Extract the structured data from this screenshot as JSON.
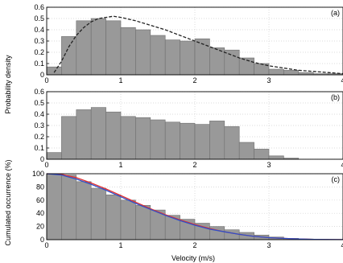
{
  "figure": {
    "ylabel_top": "Probability density",
    "ylabel_bottom": "Cumulated occurrence (%)",
    "xlabel": "Velocity (m/s)"
  },
  "chart_data": [
    {
      "type": "bar",
      "panel": "(a)",
      "xlim": [
        0,
        4
      ],
      "ylim": [
        0,
        0.6
      ],
      "xticks": [
        "0",
        "1",
        "2",
        "3",
        "4"
      ],
      "yticks": [
        "0",
        "0.1",
        "0.2",
        "0.3",
        "0.4",
        "0.5",
        "0.6"
      ],
      "bin_width": 0.2,
      "bin_starts": [
        0.0,
        0.2,
        0.4,
        0.6,
        0.8,
        1.0,
        1.2,
        1.4,
        1.6,
        1.8,
        2.0,
        2.2,
        2.4,
        2.6,
        2.8,
        3.0,
        3.2,
        3.4,
        3.6,
        3.8
      ],
      "values": [
        0.07,
        0.34,
        0.48,
        0.5,
        0.48,
        0.42,
        0.4,
        0.35,
        0.31,
        0.3,
        0.32,
        0.24,
        0.22,
        0.15,
        0.1,
        0.05,
        0.04,
        0.02,
        0.01,
        0.01
      ],
      "fit_curve": {
        "style": "dashed",
        "x": [
          0.1,
          0.2,
          0.3,
          0.4,
          0.5,
          0.6,
          0.7,
          0.8,
          0.9,
          1.0,
          1.2,
          1.4,
          1.6,
          1.8,
          2.0,
          2.2,
          2.4,
          2.6,
          2.8,
          3.0,
          3.2,
          3.4,
          3.6,
          3.8,
          4.0
        ],
        "y": [
          0.02,
          0.12,
          0.25,
          0.35,
          0.42,
          0.47,
          0.5,
          0.51,
          0.52,
          0.51,
          0.48,
          0.44,
          0.4,
          0.35,
          0.3,
          0.25,
          0.2,
          0.15,
          0.11,
          0.08,
          0.06,
          0.04,
          0.03,
          0.02,
          0.01
        ]
      }
    },
    {
      "type": "bar",
      "panel": "(b)",
      "xlim": [
        0,
        4
      ],
      "ylim": [
        0,
        0.6
      ],
      "xticks": [
        "0",
        "1",
        "2",
        "3",
        "4"
      ],
      "yticks": [
        "0",
        "0.1",
        "0.2",
        "0.3",
        "0.4",
        "0.5",
        "0.6"
      ],
      "bin_width": 0.2,
      "bin_starts": [
        0.0,
        0.2,
        0.4,
        0.6,
        0.8,
        1.0,
        1.2,
        1.4,
        1.6,
        1.8,
        2.0,
        2.2,
        2.4,
        2.6,
        2.8,
        3.0,
        3.2,
        3.4,
        3.6,
        3.8
      ],
      "values": [
        0.06,
        0.38,
        0.44,
        0.46,
        0.42,
        0.38,
        0.37,
        0.35,
        0.33,
        0.32,
        0.31,
        0.34,
        0.29,
        0.15,
        0.09,
        0.03,
        0.01,
        0.0,
        0.0,
        0.0
      ]
    },
    {
      "type": "bar",
      "panel": "(c)",
      "xlim": [
        0,
        4
      ],
      "ylim": [
        0,
        100
      ],
      "xticks": [
        "0",
        "1",
        "2",
        "3",
        "4"
      ],
      "yticks": [
        "0",
        "20",
        "40",
        "60",
        "80",
        "100"
      ],
      "bin_width": 0.2,
      "bin_starts": [
        0.0,
        0.2,
        0.4,
        0.6,
        0.8,
        1.0,
        1.2,
        1.4,
        1.6,
        1.8,
        2.0,
        2.2,
        2.4,
        2.6,
        2.8,
        3.0,
        3.2,
        3.4,
        3.6,
        3.8
      ],
      "values": [
        100,
        98,
        88,
        78,
        68,
        60,
        52,
        45,
        37,
        31,
        25,
        20,
        15,
        11,
        7,
        4,
        2,
        1,
        0.5,
        0.2
      ],
      "series": [
        {
          "color": "#e03030",
          "x": [
            0,
            0.2,
            0.4,
            0.6,
            0.8,
            1.0,
            1.2,
            1.4,
            1.6,
            1.8,
            2.0,
            2.2,
            2.4,
            2.6,
            2.8,
            3.0,
            3.2,
            3.4,
            3.6,
            3.8,
            4.0
          ],
          "y": [
            100,
            99,
            94,
            86,
            77,
            67,
            57,
            47,
            38,
            30,
            23,
            17,
            12,
            8,
            5,
            3,
            2,
            1,
            0.5,
            0.2,
            0.1
          ]
        },
        {
          "color": "#3050c8",
          "x": [
            0,
            0.2,
            0.4,
            0.6,
            0.8,
            1.0,
            1.2,
            1.4,
            1.6,
            1.8,
            2.0,
            2.2,
            2.4,
            2.6,
            2.8,
            3.0,
            3.2,
            3.4,
            3.6,
            3.8,
            4.0
          ],
          "y": [
            100,
            98,
            92,
            84,
            75,
            65,
            55,
            46,
            37,
            29,
            22,
            16,
            12,
            8,
            5,
            3,
            2,
            1,
            0.5,
            0.2,
            0.1
          ]
        }
      ]
    }
  ]
}
